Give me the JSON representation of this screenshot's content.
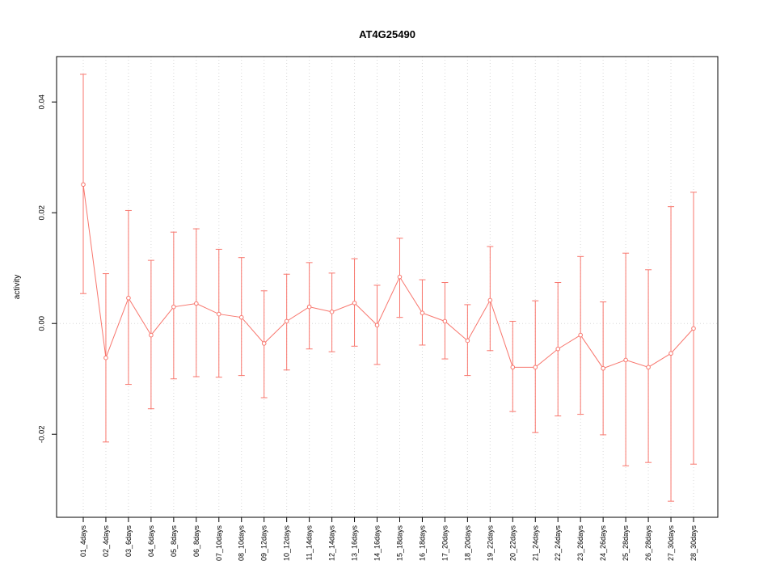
{
  "chart_data": {
    "type": "line",
    "title": "AT4G25490",
    "xlabel": "",
    "ylabel": "activity",
    "series_color": "#f8766d",
    "grid_color": "#d8d8d8",
    "axis_color": "#000000",
    "background": "#ffffff",
    "grid": "dotted-vertical-per-category-plus-zero-line",
    "legend": "none",
    "ylim": [
      -0.035,
      0.0482
    ],
    "yticks": [
      -0.02,
      0.0,
      0.02,
      0.04
    ],
    "ytick_labels": [
      "-0.02",
      "0.00",
      "0.02",
      "0.04"
    ],
    "categories": [
      "01_4days",
      "02_4days",
      "03_6days",
      "04_6days",
      "05_8days",
      "06_8days",
      "07_10days",
      "08_10days",
      "09_12days",
      "10_12days",
      "11_14days",
      "12_14days",
      "13_16days",
      "14_16days",
      "15_18days",
      "16_18days",
      "17_20days",
      "18_20days",
      "19_22days",
      "20_22days",
      "21_24days",
      "22_24days",
      "23_26days",
      "24_26days",
      "25_28days",
      "26_28days",
      "27_30days",
      "28_30days"
    ],
    "values": [
      0.0251,
      -0.0062,
      0.0046,
      -0.0021,
      0.003,
      0.0036,
      0.0017,
      0.0011,
      -0.0036,
      0.0004,
      0.003,
      0.0021,
      0.0037,
      -0.0003,
      0.0084,
      0.0019,
      0.0004,
      -0.0031,
      0.0042,
      -0.0079,
      -0.0079,
      -0.0046,
      -0.0021,
      -0.0081,
      -0.0066,
      -0.0079,
      -0.0054,
      -0.0009
    ],
    "upper": [
      0.045,
      0.009,
      0.0204,
      0.0114,
      0.0165,
      0.0171,
      0.0134,
      0.0119,
      0.0059,
      0.0089,
      0.011,
      0.0091,
      0.0117,
      0.0069,
      0.0154,
      0.0079,
      0.0074,
      0.0034,
      0.0139,
      0.0004,
      0.0041,
      0.0074,
      0.0121,
      0.0039,
      0.0127,
      0.0097,
      0.0211,
      0.0237
    ],
    "lower": [
      0.0054,
      -0.0214,
      -0.011,
      -0.0154,
      -0.01,
      -0.0096,
      -0.0097,
      -0.0094,
      -0.0134,
      -0.0084,
      -0.0046,
      -0.0051,
      -0.0041,
      -0.0074,
      0.0011,
      -0.0039,
      -0.0064,
      -0.0094,
      -0.0049,
      -0.0159,
      -0.0197,
      -0.0167,
      -0.0164,
      -0.0201,
      -0.0257,
      -0.0251,
      -0.0321,
      -0.0254
    ]
  }
}
